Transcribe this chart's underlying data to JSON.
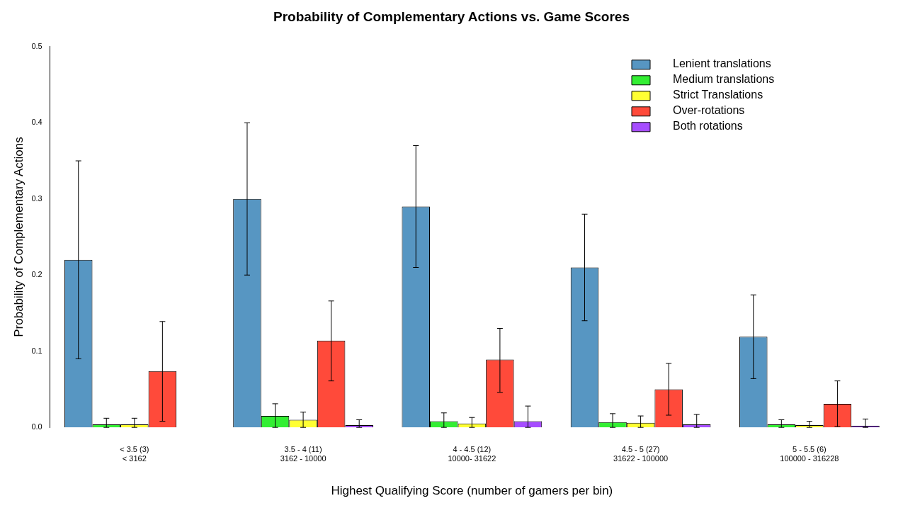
{
  "chart_data": {
    "type": "bar",
    "title": "Probability of Complementary Actions vs. Game Scores",
    "xlabel": "Highest Qualifying Score (number of gamers per bin)",
    "ylabel": "Probability of Complementary Actions",
    "categories": [
      "< 3.5 (3)\n< 3162",
      "3.5 - 4 (11)\n3162 - 10000",
      "4 - 4.5 (12)\n10000- 31622",
      "4.5 - 5 (27)\n31622 - 100000",
      "5 - 5.5 (6)\n100000 - 316228"
    ],
    "series": [
      {
        "name": "Lenient translations",
        "color": "#5796c2",
        "values": [
          0.22,
          0.3,
          0.29,
          0.21,
          0.119
        ],
        "errors": [
          [
            0.09,
            0.35
          ],
          [
            0.2,
            0.4
          ],
          [
            0.21,
            0.37
          ],
          [
            0.14,
            0.28
          ],
          [
            0.064,
            0.174
          ]
        ]
      },
      {
        "name": "Medium translations",
        "color": "#33ee33",
        "values": [
          0.004,
          0.015,
          0.008,
          0.007,
          0.004
        ],
        "errors": [
          [
            0,
            0.012
          ],
          [
            0,
            0.031
          ],
          [
            0,
            0.019
          ],
          [
            0,
            0.018
          ],
          [
            0,
            0.01
          ]
        ]
      },
      {
        "name": "Strict Translations",
        "color": "#ffff33",
        "values": [
          0.004,
          0.01,
          0.005,
          0.006,
          0.003
        ],
        "errors": [
          [
            0,
            0.012
          ],
          [
            0,
            0.02
          ],
          [
            0,
            0.013
          ],
          [
            0,
            0.015
          ],
          [
            0,
            0.008
          ]
        ]
      },
      {
        "name": "Over-rotations",
        "color": "#ff4a3a",
        "values": [
          0.074,
          0.114,
          0.089,
          0.05,
          0.031
        ],
        "errors": [
          [
            0.008,
            0.139
          ],
          [
            0.061,
            0.166
          ],
          [
            0.046,
            0.13
          ],
          [
            0.016,
            0.084
          ],
          [
            0.001,
            0.061
          ]
        ]
      },
      {
        "name": "Both rotations",
        "color": "#a64dff",
        "values": [
          null,
          0.003,
          0.008,
          0.004,
          0.002
        ],
        "errors": [
          null,
          [
            0,
            0.01
          ],
          [
            0,
            0.028
          ],
          [
            0,
            0.017
          ],
          [
            0,
            0.011
          ]
        ]
      }
    ],
    "ylim": [
      0,
      0.5
    ],
    "yticks": [
      {
        "value": 0,
        "label": "0.0"
      },
      0.1,
      0.2,
      0.3,
      0.4,
      0.5
    ],
    "grid": false,
    "legend": "top right"
  }
}
